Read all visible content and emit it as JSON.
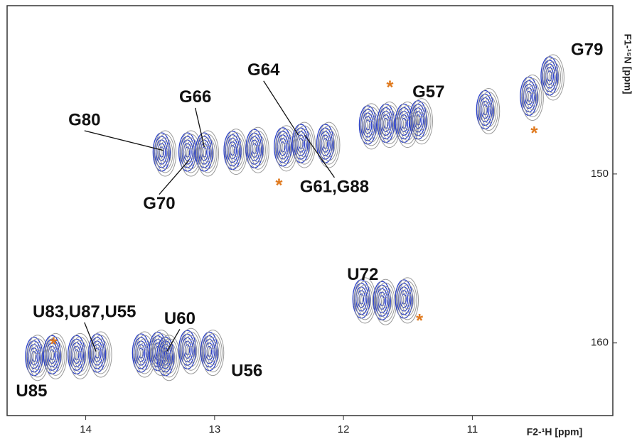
{
  "chart_data": {
    "type": "scatter",
    "xlabel": "F2-¹H [ppm]",
    "ylabel": "F1-¹⁵N [ppm]",
    "xlim": [
      14.61,
      9.91
    ],
    "ylim": [
      140.04,
      164.3
    ],
    "xticks": [
      14,
      13,
      12,
      11
    ],
    "yticks": [
      150,
      160
    ],
    "colors": [
      "#2a3fc8",
      "#9a9a9a"
    ],
    "x": [
      13.4,
      13.2,
      13.07,
      12.85,
      12.68,
      12.46,
      12.32,
      12.13,
      11.8,
      11.66,
      11.52,
      11.41,
      10.89,
      10.55,
      10.39,
      11.85,
      11.69,
      11.52,
      14.39,
      14.25,
      14.06,
      13.9,
      13.56,
      13.43,
      13.37,
      13.2,
      13.03
    ],
    "y": [
      148.7,
      148.7,
      148.7,
      148.6,
      148.5,
      148.4,
      148.2,
      148.2,
      147.1,
      147.0,
      147.0,
      146.8,
      146.2,
      145.4,
      144.2,
      157.4,
      157.5,
      157.4,
      160.8,
      160.7,
      160.7,
      160.6,
      160.6,
      160.5,
      160.8,
      160.4,
      160.5
    ],
    "annotations": [
      {
        "text": "G80",
        "x": 14.01,
        "y": 146.85,
        "to": [
          13.4,
          148.6
        ]
      },
      {
        "text": "G66",
        "x": 13.15,
        "y": 145.5,
        "to": [
          13.08,
          148.4
        ]
      },
      {
        "text": "G64",
        "x": 12.62,
        "y": 143.9,
        "to": [
          12.35,
          147.7
        ]
      },
      {
        "text": "G70",
        "x": 13.43,
        "y": 151.8,
        "to": [
          13.2,
          149.2
        ]
      },
      {
        "text": "G61,G88",
        "x": 12.07,
        "y": 150.8,
        "to": [
          12.3,
          147.7
        ]
      },
      {
        "text": "G57",
        "x": 11.34,
        "y": 145.2
      },
      {
        "text": "G79",
        "x": 10.11,
        "y": 142.7
      },
      {
        "text": "U72",
        "x": 11.85,
        "y": 156.0
      },
      {
        "text": "U83,U87,U55",
        "x": 14.01,
        "y": 158.2,
        "to": [
          13.92,
          160.5
        ]
      },
      {
        "text": "U60",
        "x": 13.27,
        "y": 158.6,
        "to": [
          13.37,
          160.5
        ]
      },
      {
        "text": "U56",
        "x": 12.75,
        "y": 161.7
      },
      {
        "text": "U85",
        "x": 14.42,
        "y": 162.9
      }
    ],
    "asterisks": {
      "text": "*",
      "color": "#e07a1f",
      "x": [
        11.64,
        10.52,
        12.5,
        11.41,
        14.25
      ],
      "y": [
        144.7,
        147.4,
        150.5,
        158.5,
        159.9
      ]
    }
  }
}
